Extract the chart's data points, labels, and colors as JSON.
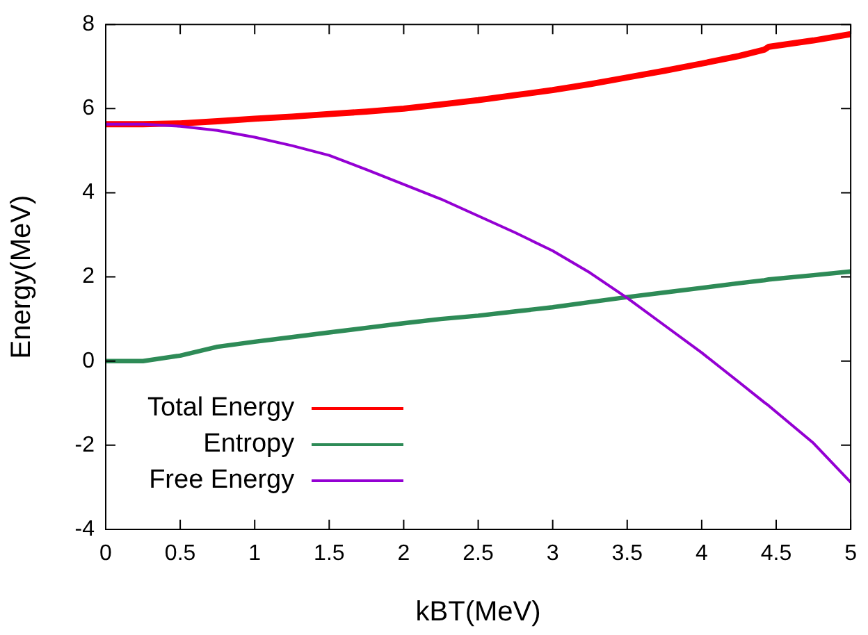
{
  "chart_data": {
    "type": "line",
    "xlabel": "kBT(MeV)",
    "ylabel": "Energy(MeV)",
    "xlim": [
      0,
      5
    ],
    "xticks": [
      0,
      0.5,
      1,
      1.5,
      2,
      2.5,
      3,
      3.5,
      4,
      4.5,
      5
    ],
    "ylim": [
      -4,
      8
    ],
    "yticks": [
      -4,
      -2,
      0,
      2,
      4,
      6,
      8
    ],
    "grid": false,
    "legend": "bottom left",
    "marker": "none",
    "line_style": "solid",
    "x": [
      0,
      0.25,
      0.5,
      0.75,
      1,
      1.25,
      1.5,
      1.75,
      2,
      2.25,
      2.5,
      2.75,
      3,
      3.25,
      3.5,
      3.75,
      4,
      4.25,
      4.42,
      4.45,
      4.75,
      5
    ],
    "series": [
      {
        "name": "Total Energy",
        "color": "#ff0000",
        "values": [
          5.63,
          5.63,
          5.65,
          5.7,
          5.76,
          5.81,
          5.87,
          5.93,
          6.0,
          6.1,
          6.2,
          6.32,
          6.44,
          6.58,
          6.74,
          6.9,
          7.07,
          7.25,
          7.4,
          7.47,
          7.62,
          7.77
        ]
      },
      {
        "name": "Entropy",
        "color": "#2e8b57",
        "values": [
          0,
          0,
          0.13,
          0.34,
          0.46,
          0.57,
          0.68,
          0.79,
          0.9,
          1.0,
          1.08,
          1.18,
          1.28,
          1.4,
          1.52,
          1.63,
          1.74,
          1.85,
          1.92,
          1.94,
          2.04,
          2.13
        ]
      },
      {
        "name": "Free Energy",
        "color": "#9400d3",
        "values": [
          5.63,
          5.63,
          5.58,
          5.48,
          5.32,
          5.12,
          4.89,
          4.55,
          4.2,
          3.85,
          3.45,
          3.05,
          2.62,
          2.1,
          1.5,
          0.85,
          0.2,
          -0.5,
          -0.98,
          -1.06,
          -1.95,
          -2.88
        ]
      }
    ]
  }
}
